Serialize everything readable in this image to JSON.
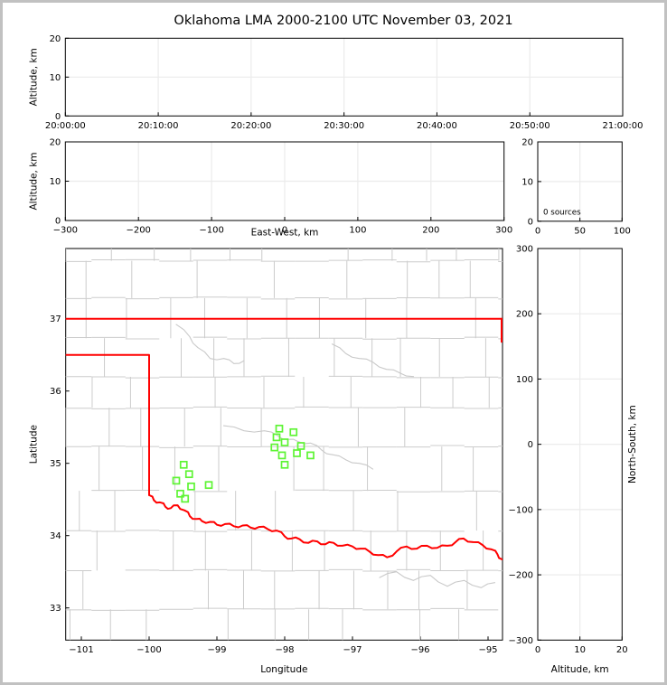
{
  "title": "Oklahoma LMA 2000-2100 UTC November 03, 2021",
  "colors": {
    "background": "#ffffff",
    "frame": "#c1c1c1",
    "axis": "#000000",
    "grid": "#ebebeb",
    "county": "#cccccc",
    "river": "#c9c9c9",
    "state_border": "#ff0000",
    "station": "#5ef434"
  },
  "chart_data": [
    {
      "id": "altitude-vs-time",
      "type": "scatter",
      "x": {
        "label": "",
        "range": [
          "20:00:00",
          "21:00:00"
        ],
        "ticks": [
          0,
          1,
          2,
          3,
          4,
          5,
          6
        ],
        "tick_labels": [
          "20:00:00",
          "20:10:00",
          "20:20:00",
          "20:30:00",
          "20:40:00",
          "20:50:00",
          "21:00:00"
        ]
      },
      "y": {
        "label": "Altitude, km",
        "range": [
          0,
          20
        ],
        "ticks": [
          0,
          10,
          20
        ],
        "tick_labels": [
          "0",
          "10",
          "20"
        ]
      },
      "points": []
    },
    {
      "id": "altitude-vs-eastwest",
      "type": "scatter",
      "x": {
        "label": "East-West, km",
        "range": [
          -300,
          300
        ],
        "ticks": [
          -300,
          -200,
          -100,
          0,
          100,
          200,
          300
        ],
        "tick_labels": [
          "−300",
          "−200",
          "−100",
          "0",
          "100",
          "200",
          "300"
        ]
      },
      "y": {
        "label": "Altitude, km",
        "range": [
          0,
          20
        ],
        "ticks": [
          0,
          10,
          20
        ],
        "tick_labels": [
          "0",
          "10",
          "20"
        ]
      },
      "points": []
    },
    {
      "id": "altitude-histogram",
      "type": "line",
      "annotation": "0 sources",
      "x": {
        "label": "",
        "range": [
          0,
          100
        ],
        "ticks": [
          0,
          50,
          100
        ],
        "tick_labels": [
          "0",
          "50",
          "100"
        ]
      },
      "y": {
        "label": "",
        "range": [
          0,
          20
        ],
        "ticks": [
          0,
          10,
          20
        ],
        "tick_labels": [
          "0",
          "10",
          "20"
        ]
      },
      "points": []
    },
    {
      "id": "map-plan-view",
      "type": "scatter",
      "x": {
        "label": "Longitude",
        "range": [
          -101.23,
          -94.79
        ],
        "ticks": [
          -101,
          -100,
          -99,
          -98,
          -97,
          -96,
          -95
        ],
        "tick_labels": [
          "−101",
          "−100",
          "−99",
          "−98",
          "−97",
          "−96",
          "−95"
        ]
      },
      "y": {
        "label": "Latitude",
        "range": [
          32.56,
          37.97
        ],
        "ticks": [
          33,
          34,
          35,
          36,
          37
        ],
        "tick_labels": [
          "33",
          "34",
          "35",
          "36",
          "37"
        ]
      },
      "stations": [
        [
          -99.49,
          34.98
        ],
        [
          -99.41,
          34.85
        ],
        [
          -99.6,
          34.76
        ],
        [
          -99.38,
          34.68
        ],
        [
          -99.54,
          34.58
        ],
        [
          -99.47,
          34.51
        ],
        [
          -99.12,
          34.7
        ],
        [
          -98.08,
          35.48
        ],
        [
          -97.87,
          35.43
        ],
        [
          -98.12,
          35.36
        ],
        [
          -98.0,
          35.29
        ],
        [
          -98.15,
          35.22
        ],
        [
          -97.76,
          35.24
        ],
        [
          -97.82,
          35.14
        ],
        [
          -98.04,
          35.11
        ],
        [
          -97.62,
          35.11
        ],
        [
          -98.0,
          34.98
        ]
      ],
      "state_borders": [
        {
          "name": "kansas-oklahoma",
          "points": [
            [
              -101.23,
              37
            ],
            [
              -94.79,
              37
            ]
          ]
        },
        {
          "name": "panhandle-texas",
          "points": [
            [
              -101.23,
              36.5
            ],
            [
              -100.0,
              36.5
            ],
            [
              -100.0,
              34.56
            ]
          ]
        },
        {
          "name": "missouri-edge",
          "points": [
            [
              -94.8,
              37
            ],
            [
              -94.8,
              36.68
            ]
          ]
        },
        {
          "name": "red-river",
          "points": [
            [
              -100.0,
              34.56
            ],
            [
              -99.93,
              34.49
            ],
            [
              -99.84,
              34.46
            ],
            [
              -99.76,
              34.4
            ],
            [
              -99.68,
              34.38
            ],
            [
              -99.58,
              34.42
            ],
            [
              -99.48,
              34.35
            ],
            [
              -99.4,
              34.27
            ],
            [
              -99.3,
              34.23
            ],
            [
              -99.22,
              34.2
            ],
            [
              -99.1,
              34.19
            ],
            [
              -99.0,
              34.15
            ],
            [
              -98.88,
              34.16
            ],
            [
              -98.75,
              34.13
            ],
            [
              -98.62,
              34.14
            ],
            [
              -98.5,
              34.11
            ],
            [
              -98.38,
              34.12
            ],
            [
              -98.25,
              34.09
            ],
            [
              -98.12,
              34.07
            ],
            [
              -98.0,
              33.99
            ],
            [
              -97.9,
              33.96
            ],
            [
              -97.78,
              33.95
            ],
            [
              -97.65,
              33.9
            ],
            [
              -97.52,
              33.92
            ],
            [
              -97.4,
              33.88
            ],
            [
              -97.28,
              33.9
            ],
            [
              -97.15,
              33.86
            ],
            [
              -97.0,
              33.85
            ],
            [
              -96.88,
              33.82
            ],
            [
              -96.75,
              33.78
            ],
            [
              -96.62,
              33.73
            ],
            [
              -96.49,
              33.7
            ],
            [
              -96.35,
              33.78
            ],
            [
              -96.2,
              33.85
            ],
            [
              -96.05,
              33.82
            ],
            [
              -95.9,
              33.86
            ],
            [
              -95.75,
              33.83
            ],
            [
              -95.6,
              33.86
            ],
            [
              -95.48,
              33.91
            ],
            [
              -95.36,
              33.96
            ],
            [
              -95.22,
              33.91
            ],
            [
              -95.08,
              33.87
            ],
            [
              -94.95,
              33.81
            ],
            [
              -94.86,
              33.74
            ],
            [
              -94.79,
              33.67
            ]
          ]
        }
      ],
      "rivers": [
        [
          [
            -99.6,
            36.92
          ],
          [
            -99.4,
            36.75
          ],
          [
            -99.28,
            36.6
          ],
          [
            -99.1,
            36.45
          ],
          [
            -98.9,
            36.45
          ],
          [
            -98.75,
            36.38
          ],
          [
            -98.6,
            36.42
          ]
        ],
        [
          [
            -97.3,
            36.65
          ],
          [
            -97.1,
            36.52
          ],
          [
            -96.9,
            36.45
          ],
          [
            -96.7,
            36.4
          ],
          [
            -96.5,
            36.3
          ],
          [
            -96.3,
            36.25
          ],
          [
            -96.1,
            36.2
          ]
        ],
        [
          [
            -98.9,
            35.52
          ],
          [
            -98.6,
            35.45
          ],
          [
            -98.3,
            35.45
          ],
          [
            -98.1,
            35.38
          ],
          [
            -97.95,
            35.33
          ],
          [
            -97.8,
            35.3
          ],
          [
            -97.62,
            35.28
          ],
          [
            -97.45,
            35.18
          ],
          [
            -97.3,
            35.12
          ],
          [
            -97.1,
            35.05
          ],
          [
            -96.9,
            35.0
          ],
          [
            -96.7,
            34.92
          ]
        ],
        [
          [
            -96.6,
            33.42
          ],
          [
            -96.35,
            33.5
          ],
          [
            -96.1,
            33.38
          ],
          [
            -95.85,
            33.45
          ],
          [
            -95.6,
            33.3
          ],
          [
            -95.35,
            33.38
          ],
          [
            -95.1,
            33.28
          ],
          [
            -94.9,
            33.35
          ]
        ]
      ],
      "county_grid": {
        "lat_start": 32.45,
        "lat_end": 38.05,
        "lat_step": 0.48,
        "lon_start": -101.35,
        "lon_end": -94.7,
        "lon_step": 0.55,
        "seed": 11,
        "skip_v": 0.16,
        "skip_h": 0.05
      }
    },
    {
      "id": "northsouth-vs-altitude",
      "type": "scatter",
      "x": {
        "label": "Altitude, km",
        "range": [
          0,
          20
        ],
        "ticks": [
          0,
          10,
          20
        ],
        "tick_labels": [
          "0",
          "10",
          "20"
        ]
      },
      "y": {
        "label": "North-South, km",
        "label_side": "right",
        "range": [
          -300,
          300
        ],
        "ticks": [
          300,
          200,
          100,
          0,
          -100,
          -200,
          -300
        ],
        "tick_labels": [
          "300",
          "200",
          "100",
          "0",
          "−100",
          "−200",
          "−300"
        ]
      },
      "points": []
    }
  ]
}
